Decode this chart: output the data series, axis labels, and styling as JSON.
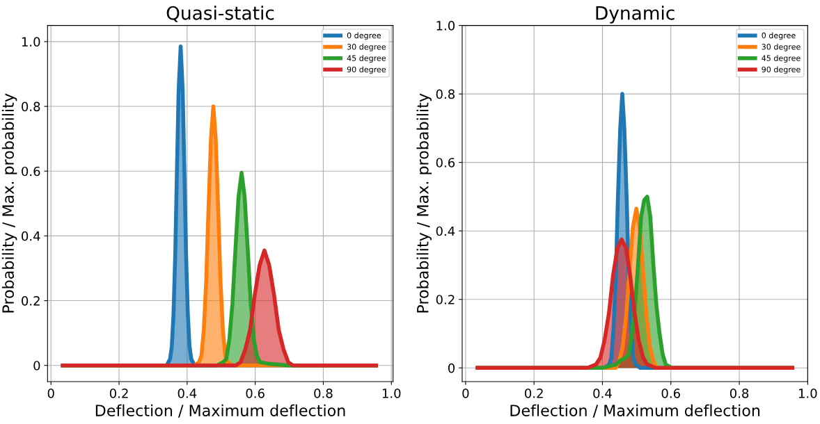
{
  "chart_data": [
    {
      "type": "area",
      "title": "Quasi-static",
      "xlabel": "Deflection / Maximum deflection",
      "ylabel": "Probability / Max. probability",
      "xlim": [
        -0.01,
        1.005
      ],
      "ylim": [
        -0.05,
        1.05
      ],
      "xticks": [
        0,
        0.2,
        0.4,
        0.6,
        0.8,
        {
          "value": 1.0,
          "label": "1.0"
        }
      ],
      "yticks": [
        0,
        0.2,
        0.4,
        0.6,
        0.8,
        {
          "value": 1.0,
          "label": "1.0"
        }
      ],
      "grid": true,
      "legend": "top right",
      "series": [
        {
          "name": "0 degree",
          "color": "#1f77b4",
          "x": [
            0.035,
            0.34,
            0.35,
            0.355,
            0.36,
            0.365,
            0.37,
            0.375,
            0.381,
            0.387,
            0.392,
            0.397,
            0.402,
            0.407,
            0.412,
            0.422,
            0.955
          ],
          "values": [
            0,
            0,
            0.02,
            0.06,
            0.16,
            0.34,
            0.6,
            0.85,
            0.985,
            0.85,
            0.6,
            0.34,
            0.16,
            0.06,
            0.02,
            0,
            0
          ]
        },
        {
          "name": "30 degree",
          "color": "#ff7f0e",
          "x": [
            0.035,
            0.421,
            0.435,
            0.442,
            0.449,
            0.456,
            0.463,
            0.47,
            0.477,
            0.484,
            0.491,
            0.498,
            0.505,
            0.512,
            0.519,
            0.533,
            0.955
          ],
          "values": [
            0,
            0,
            0.01,
            0.03,
            0.11,
            0.26,
            0.49,
            0.7,
            0.8,
            0.7,
            0.49,
            0.26,
            0.11,
            0.03,
            0.01,
            0,
            0
          ]
        },
        {
          "name": "45 degree",
          "color": "#2ca02c",
          "x": [
            0.035,
            0.488,
            0.506,
            0.515,
            0.524,
            0.533,
            0.542,
            0.551,
            0.56,
            0.569,
            0.578,
            0.587,
            0.596,
            0.605,
            0.614,
            0.64,
            0.7,
            0.955
          ],
          "values": [
            0,
            0,
            0.01,
            0.02,
            0.08,
            0.19,
            0.36,
            0.52,
            0.595,
            0.52,
            0.36,
            0.19,
            0.08,
            0.03,
            0.01,
            0.005,
            0,
            0
          ]
        },
        {
          "name": "90 degree",
          "color": "#d62728",
          "x": [
            0.035,
            0.515,
            0.543,
            0.557,
            0.571,
            0.585,
            0.599,
            0.613,
            0.627,
            0.641,
            0.655,
            0.669,
            0.683,
            0.697,
            0.711,
            0.739,
            0.955
          ],
          "values": [
            0,
            0,
            0,
            0.01,
            0.05,
            0.11,
            0.22,
            0.31,
            0.355,
            0.31,
            0.22,
            0.11,
            0.05,
            0.01,
            0,
            0,
            0
          ]
        }
      ]
    },
    {
      "type": "area",
      "title": "Dynamic",
      "xlabel": "Deflection / Maximum deflection",
      "ylabel": "Probability / Max. probability",
      "xlim": [
        -0.01,
        1.0
      ],
      "ylim": [
        -0.04,
        1.0
      ],
      "xticks": [
        0,
        0.2,
        0.4,
        0.6,
        0.8,
        {
          "value": 1.0,
          "label": "1.0"
        }
      ],
      "yticks": [
        0,
        0.2,
        0.4,
        0.6,
        0.8,
        {
          "value": 1.0,
          "label": "1.0"
        }
      ],
      "grid": true,
      "legend": "top right",
      "series": [
        {
          "name": "0 degree",
          "color": "#1f77b4",
          "x": [
            0.035,
            0.406,
            0.42,
            0.426,
            0.432,
            0.439,
            0.445,
            0.452,
            0.458,
            0.464,
            0.471,
            0.477,
            0.484,
            0.49,
            0.497,
            0.51,
            0.955
          ],
          "values": [
            0,
            0,
            0.01,
            0.03,
            0.11,
            0.26,
            0.49,
            0.7,
            0.8,
            0.7,
            0.49,
            0.26,
            0.11,
            0.03,
            0.01,
            0,
            0
          ]
        },
        {
          "name": "30 degree",
          "color": "#ff7f0e",
          "x": [
            0.035,
            0.419,
            0.439,
            0.449,
            0.459,
            0.469,
            0.479,
            0.489,
            0.499,
            0.509,
            0.519,
            0.529,
            0.539,
            0.549,
            0.559,
            0.579,
            0.955
          ],
          "values": [
            0,
            0,
            0,
            0.02,
            0.06,
            0.15,
            0.28,
            0.41,
            0.465,
            0.41,
            0.28,
            0.15,
            0.06,
            0.02,
            0,
            0,
            0
          ]
        },
        {
          "name": "45 degree",
          "color": "#2ca02c",
          "x": [
            0.035,
            0.4,
            0.44,
            0.45,
            0.468,
            0.477,
            0.486,
            0.495,
            0.504,
            0.513,
            0.522,
            0.531,
            0.54,
            0.549,
            0.558,
            0.567,
            0.576,
            0.585,
            0.603,
            0.955
          ],
          "values": [
            0,
            0,
            0.01,
            0.02,
            0.03,
            0.04,
            0.1,
            0.18,
            0.3,
            0.44,
            0.49,
            0.5,
            0.44,
            0.3,
            0.18,
            0.1,
            0.04,
            0.01,
            0,
            0
          ]
        },
        {
          "name": "90 degree",
          "color": "#d62728",
          "x": [
            0.035,
            0.356,
            0.381,
            0.394,
            0.406,
            0.419,
            0.431,
            0.444,
            0.456,
            0.469,
            0.481,
            0.494,
            0.506,
            0.519,
            0.531,
            0.556,
            0.955
          ],
          "values": [
            0,
            0,
            0.01,
            0.03,
            0.08,
            0.16,
            0.27,
            0.35,
            0.375,
            0.35,
            0.27,
            0.16,
            0.08,
            0.03,
            0.01,
            0,
            0
          ]
        }
      ]
    }
  ]
}
